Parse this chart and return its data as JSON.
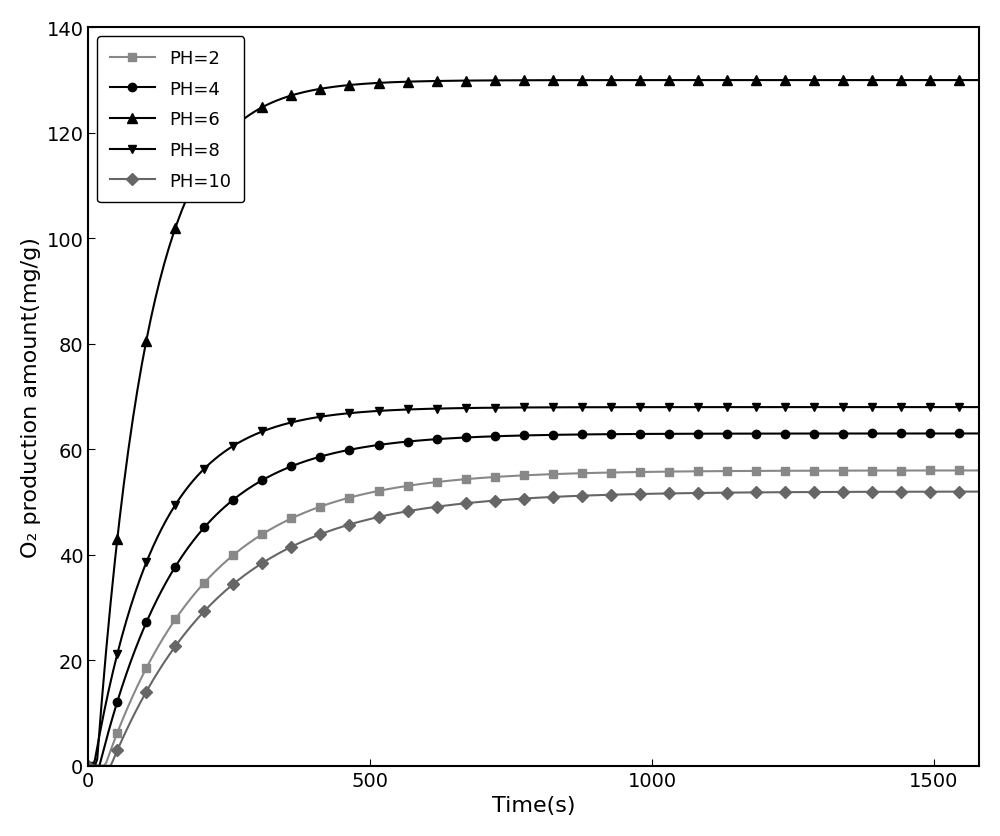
{
  "series": [
    {
      "label": "PH=2",
      "color": "#888888",
      "marker": "s",
      "plateau": 56,
      "t0": 30,
      "k": 0.0055,
      "markersize": 6,
      "markerfacecolor": "#888888"
    },
    {
      "label": "PH=4",
      "color": "#000000",
      "marker": "o",
      "plateau": 63,
      "t0": 20,
      "k": 0.0068,
      "markersize": 6,
      "markerfacecolor": "#000000"
    },
    {
      "label": "PH=6",
      "color": "#000000",
      "marker": "^",
      "plateau": 130,
      "t0": 15,
      "k": 0.011,
      "markersize": 7,
      "markerfacecolor": "#000000"
    },
    {
      "label": "PH=8",
      "color": "#000000",
      "marker": "v",
      "plateau": 68,
      "t0": 10,
      "k": 0.009,
      "markersize": 6,
      "markerfacecolor": "#000000"
    },
    {
      "label": "PH=10",
      "color": "#666666",
      "marker": "D",
      "plateau": 52,
      "t0": 40,
      "k": 0.005,
      "markersize": 6,
      "markerfacecolor": "#666666"
    }
  ],
  "xlabel": "Time(s)",
  "ylabel": "O₂ production amount(mg/g)",
  "xlim": [
    0,
    1580
  ],
  "ylim": [
    0,
    140
  ],
  "xticks": [
    0,
    500,
    1000,
    1500
  ],
  "yticks": [
    0,
    20,
    40,
    60,
    80,
    100,
    120,
    140
  ],
  "n_points": 400,
  "marker_every": 13,
  "background_color": "#ffffff",
  "linewidth": 1.5,
  "legend_fontsize": 13,
  "axis_fontsize": 16,
  "tick_fontsize": 14
}
